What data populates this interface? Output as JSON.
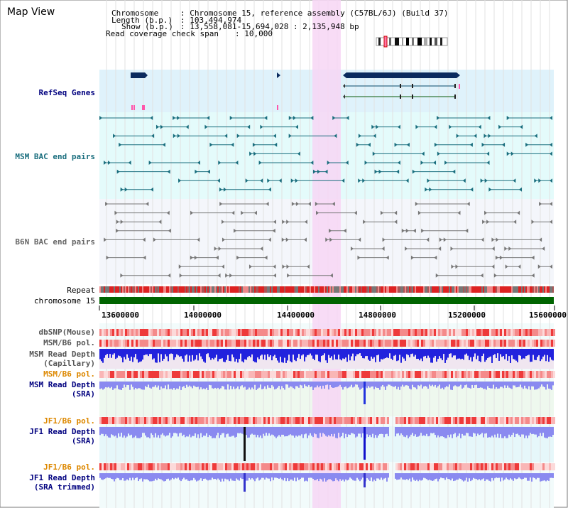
{
  "title": "Map View",
  "info": {
    "chromosome_key": "Chromosome",
    "chromosome_val": ": Chromosome 15, reference assembly (C57BL/6J) (Build 37)",
    "length_key": "Length (b.p.)",
    "length_val": ": 103,494,974",
    "show_key": "Show (b.p.)",
    "show_val": ": 13,558,081-15,694,028 : 2,135,948 bp",
    "span_key": "Read coverage check span",
    "span_val": ": 10,000"
  },
  "tracks": {
    "refseq": "RefSeq Genes",
    "msm_bac": "MSM BAC end pairs",
    "b6n_bac": "B6N BAC end pairs",
    "repeat": "Repeat",
    "chromosome": "chromosome 15",
    "dbsnp": "dbSNP(Mouse)",
    "msm_b6_pol_1": "MSM/B6 pol.",
    "msm_read_depth_cap_1": "MSM Read Depth",
    "msm_read_depth_cap_2": "(Capillary)",
    "msm_b6_pol_2": "MSM/B6 pol.",
    "msm_read_depth_sra_1": "MSM Read Depth",
    "msm_read_depth_sra_2": "(SRA)",
    "jf1_b6_pol_1": "JF1/B6 pol.",
    "jf1_read_depth_sra_1": "JF1 Read Depth",
    "jf1_read_depth_sra_2": "(SRA)",
    "jf1_b6_pol_2": "JF1/B6 pol.",
    "jf1_read_depth_trim_1": "JF1 Read Depth",
    "jf1_read_depth_trim_2": "(SRA trimmed)"
  },
  "axis_ticks": [
    "13600000",
    "14000000",
    "14400000",
    "14800000",
    "15200000",
    "15600000"
  ],
  "colors": {
    "refseq_bg": "#dff2fb",
    "msm_bg": "#e4fbfb",
    "b6n_bg": "#f4f6fb",
    "highlight": "#f7d6f5",
    "chromosome": "#006400",
    "msm_feature": "#1a6e7e",
    "b6n_feature": "#777777",
    "refseq_feature": "#0a2a5e",
    "depth_blue": "#2222dd",
    "depth_light": "#8a8af0",
    "teal_label": "#1a6e7e",
    "navy_label": "#00007f",
    "orange_label": "#dd8800"
  }
}
